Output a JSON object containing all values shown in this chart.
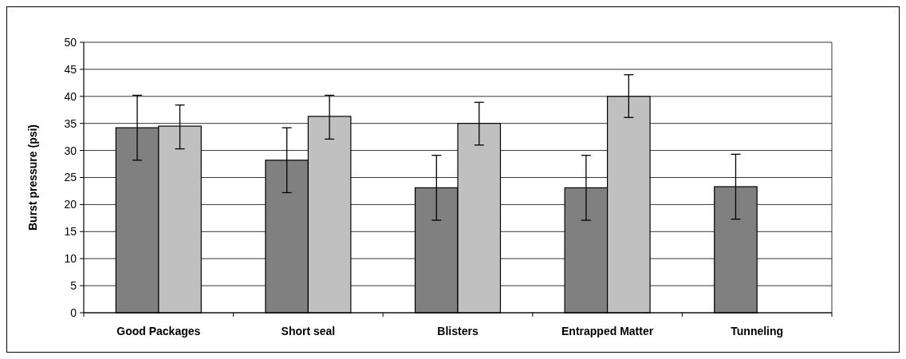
{
  "chart_data": {
    "type": "bar",
    "ylabel": "Burst pressure (psi)",
    "categories": [
      "Good Packages",
      "Short seal",
      "Blisters",
      "Entrapped Matter",
      "Tunneling"
    ],
    "series": [
      {
        "color": "#808080",
        "values": [
          34.2,
          28.2,
          23.1,
          23.1,
          23.3
        ],
        "errors": [
          [
            28.2,
            40.2
          ],
          [
            22.2,
            34.2
          ],
          [
            17.1,
            29.1
          ],
          [
            17.1,
            29.1
          ],
          [
            17.3,
            29.3
          ]
        ]
      },
      {
        "color": "#c0c0c0",
        "values": [
          34.5,
          36.3,
          35,
          40,
          null
        ],
        "errors": [
          [
            30.3,
            38.4
          ],
          [
            32.1,
            40.2
          ],
          [
            31,
            38.9
          ],
          [
            36.1,
            44
          ],
          null
        ]
      }
    ],
    "ylim": [
      0,
      50
    ],
    "yticks": [
      0,
      5,
      10,
      15,
      20,
      25,
      30,
      35,
      40,
      45,
      50
    ],
    "grid": "y",
    "legend": false
  }
}
